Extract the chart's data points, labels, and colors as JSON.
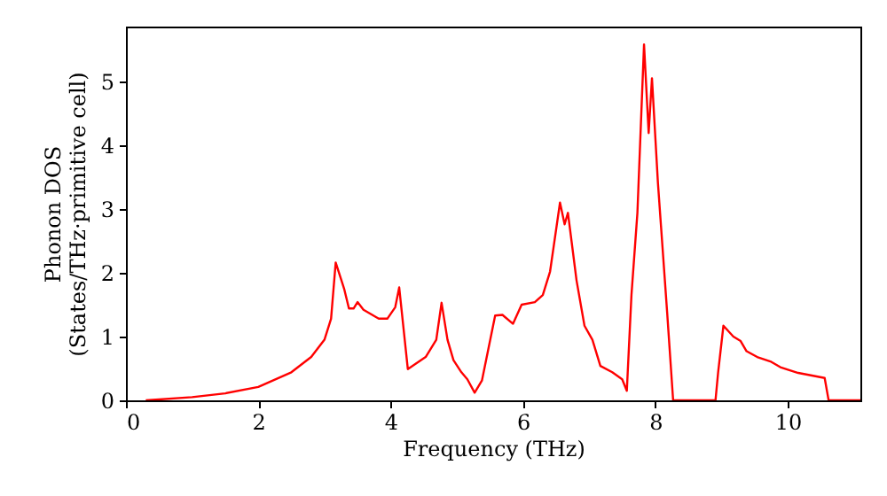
{
  "chart_data": {
    "type": "line",
    "xlabel": "Frequency (THz)",
    "ylabel": "Phonon DOS\n(States/THz·primitive cell)",
    "xlim": [
      0,
      11.1
    ],
    "xticks": [
      0,
      2,
      4,
      6,
      8,
      10
    ],
    "ylim": [
      0,
      5.86
    ],
    "yticks": [
      0,
      1,
      2,
      3,
      4,
      5
    ],
    "grid": false,
    "marker": "none",
    "line_style": "solid",
    "series": [
      {
        "color": "#ff0000",
        "x": [
          0.3,
          1,
          1.5,
          2,
          2.5,
          2.8,
          3.0,
          3.1,
          3.17,
          3.3,
          3.37,
          3.44,
          3.5,
          3.59,
          3.82,
          3.95,
          4.07,
          4.13,
          4.26,
          4.53,
          4.69,
          4.77,
          4.86,
          4.95,
          5.07,
          5.16,
          5.27,
          5.38,
          5.58,
          5.69,
          5.85,
          5.98,
          6.18,
          6.3,
          6.41,
          6.56,
          6.63,
          6.68,
          6.81,
          6.93,
          7.05,
          7.17,
          7.35,
          7.5,
          7.57,
          7.64,
          7.73,
          7.83,
          7.9,
          7.95,
          8.04,
          8.18,
          8.27,
          8.91,
          8.95,
          9.03,
          9.18,
          9.29,
          9.38,
          9.54,
          9.74,
          9.89,
          10.16,
          10.56,
          10.62,
          11.1
        ],
        "values": [
          0,
          0.05,
          0.11,
          0.21,
          0.44,
          0.68,
          0.95,
          1.28,
          2.16,
          1.74,
          1.44,
          1.44,
          1.54,
          1.42,
          1.28,
          1.28,
          1.46,
          1.77,
          0.49,
          0.68,
          0.95,
          1.53,
          0.95,
          0.63,
          0.44,
          0.33,
          0.12,
          0.31,
          1.33,
          1.34,
          1.2,
          1.5,
          1.54,
          1.65,
          2.02,
          3.1,
          2.76,
          2.94,
          1.88,
          1.17,
          0.95,
          0.54,
          0.44,
          0.33,
          0.15,
          1.65,
          2.94,
          5.58,
          4.19,
          5.05,
          3.41,
          1.37,
          0,
          0,
          0.44,
          1.17,
          1.0,
          0.93,
          0.77,
          0.68,
          0.61,
          0.52,
          0.43,
          0.35,
          0,
          0
        ]
      }
    ]
  }
}
